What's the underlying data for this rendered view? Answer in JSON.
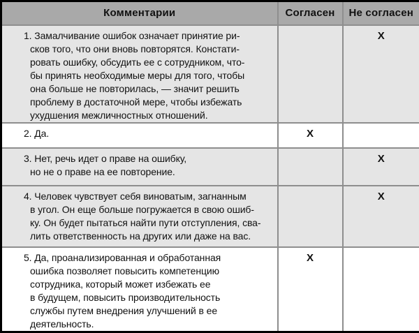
{
  "header": {
    "comments": "Комментарии",
    "agree": "Согласен",
    "disagree": "Не согласен"
  },
  "rows": [
    {
      "comment": "1. Замалчивание ошибок означает принятие ри-\nсков того, что они вновь повторятся. Констати-\nровать ошибку, обсудить ее с сотрудником, что-\nбы принять необходимые меры для того, чтобы\nона больше не повторилась, — значит решить\nпроблему в достаточной мере, чтобы избежать\nухудшения межличностных отношений.",
      "agree": "",
      "disagree": "X",
      "shaded": true
    },
    {
      "comment": "2. Да.",
      "agree": "X",
      "disagree": "",
      "shaded": false
    },
    {
      "comment": "3. Нет, речь идет о праве на ошибку,\nно не о праве на ее повторение.",
      "agree": "",
      "disagree": "X",
      "shaded": true
    },
    {
      "comment": "4. Человек чувствует себя виноватым, загнанным\nв угол. Он еще больше погружается в свою ошиб-\nку. Он будет пытаться найти пути отступления, сва-\nлить ответственность на других или даже на вас.",
      "agree": "",
      "disagree": "X",
      "shaded": true
    },
    {
      "comment": "5. Да, проанализированная и обработанная\nошибка позволяет повысить компетенцию\nсотрудника, который может избежать ее\nв будущем, повысить производительность\nслужбы путем внедрения улучшений в ее\nдеятельность.",
      "agree": "X",
      "disagree": "",
      "shaded": false
    }
  ],
  "colors": {
    "header_bg": "#a9a9a9",
    "row_shaded_bg": "#e5e5e5",
    "row_plain_bg": "#ffffff",
    "grid_line": "#8e8e8e",
    "outer_border": "#000000"
  }
}
